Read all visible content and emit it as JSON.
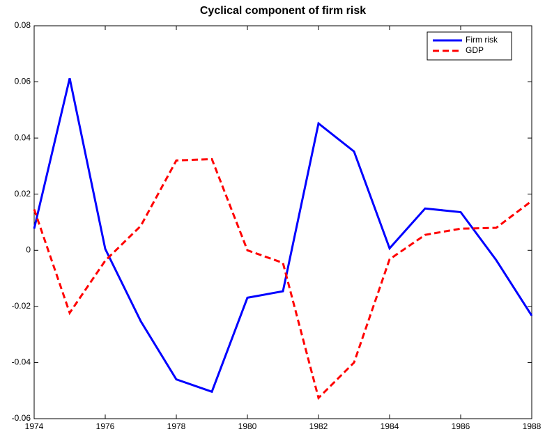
{
  "chart_data": {
    "type": "line",
    "title": "Cyclical component of firm risk",
    "x": [
      1974,
      1975,
      1976,
      1977,
      1978,
      1979,
      1980,
      1981,
      1982,
      1983,
      1984,
      1985,
      1986,
      1987,
      1988
    ],
    "series": [
      {
        "name": "Firm risk",
        "color": "#0000ff",
        "dash": false,
        "values": [
          0.0077,
          0.0613,
          0.0005,
          -0.0253,
          -0.046,
          -0.0504,
          -0.0169,
          -0.0146,
          0.0452,
          0.0352,
          0.0007,
          0.0149,
          0.0136,
          -0.0035,
          -0.0233
        ]
      },
      {
        "name": "GDP",
        "color": "#ff0000",
        "dash": true,
        "values": [
          0.0146,
          -0.0223,
          -0.0037,
          0.0087,
          0.032,
          0.0325,
          0.0,
          -0.0045,
          -0.0526,
          -0.04,
          -0.0032,
          0.0055,
          0.0077,
          0.008,
          0.0176
        ]
      }
    ],
    "xlim": [
      1974,
      1988
    ],
    "xticks": [
      1974,
      1976,
      1978,
      1980,
      1982,
      1984,
      1986,
      1988
    ],
    "ylim": [
      -0.06,
      0.08
    ],
    "yticks": [
      -0.06,
      -0.04,
      -0.02,
      0,
      0.02,
      0.04,
      0.06,
      0.08
    ],
    "grid": false,
    "legend": "upper right"
  }
}
